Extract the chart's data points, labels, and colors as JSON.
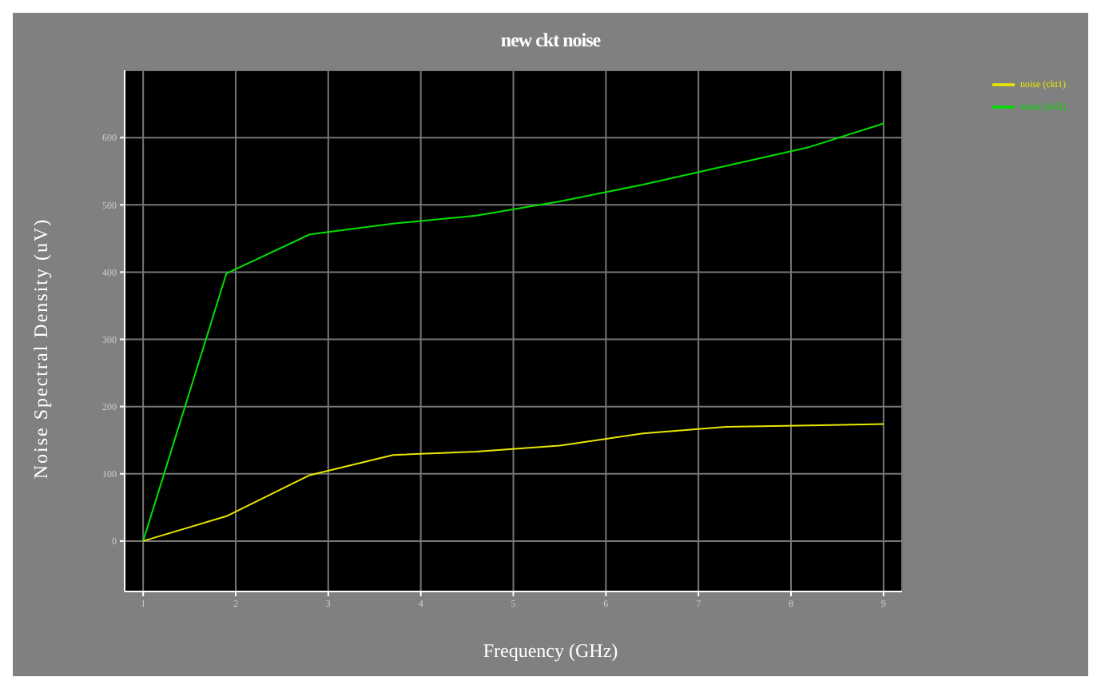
{
  "chart_data": {
    "type": "line",
    "title": "new ckt noise",
    "xlabel": "Frequency (GHz)",
    "ylabel": "Noise Spectral Density (uV)",
    "x": [
      1,
      1.9,
      2.8,
      3.7,
      4.6,
      5.5,
      6.4,
      7.3,
      8.2,
      9
    ],
    "series": [
      {
        "name": "noise (ckt2)",
        "color": "#00e000",
        "values": [
          0,
          398,
          456,
          472,
          484,
          505,
          530,
          558,
          586,
          621
        ]
      },
      {
        "name": "noise (ckt1)",
        "color": "#e8e800",
        "values": [
          0,
          37,
          98,
          128,
          133,
          142,
          160,
          170,
          172,
          174
        ]
      }
    ],
    "xlim": [
      0.8,
      9.2
    ],
    "xticks": [
      1,
      2,
      3,
      4,
      5,
      6,
      7,
      8,
      9
    ],
    "ylim": [
      -75,
      700
    ],
    "yticks": [
      0,
      100,
      200,
      300,
      400,
      500,
      600
    ],
    "grid": true,
    "legend": "top right",
    "marker": "none",
    "line_style": "solid"
  }
}
